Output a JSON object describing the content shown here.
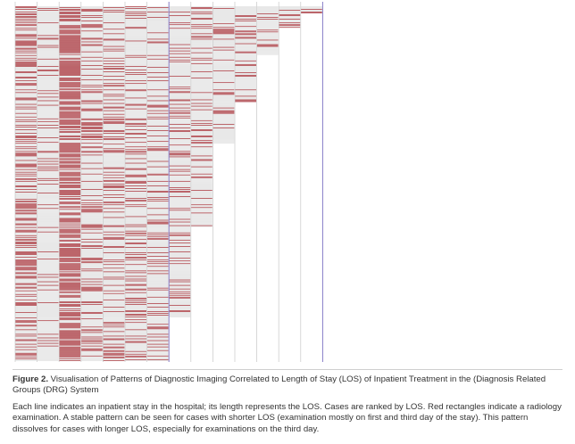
{
  "figure": {
    "label": "Figure 2.",
    "title": "Visualisation of Patterns of Diagnostic Imaging Correlated to Length of Stay (LOS) of Inpatient Treatment in the (Diagnosis Related Groups (DRG) System",
    "description": "Each line indicates an inpatient stay in the hospital; its length represents the LOS. Cases are ranked by LOS. Red rectangles indicate a radiology examination. A stable pattern can be seen for cases with shorter LOS (examination mostly on first and third day of the stay). This pattern dissolves for cases with longer LOS, especially for examinations on the third day."
  },
  "chart_data": {
    "type": "heatmap",
    "title": "",
    "xlabel": "",
    "ylabel": "",
    "grid": true,
    "colors": {
      "exam": "#a8383f",
      "no_exam": "#e2e2e2",
      "grid": "#c8c8c8",
      "week_line": "#8a7fc9"
    },
    "days": 14,
    "week_lines_after_day": [
      7,
      14
    ],
    "exam_probability_by_day": [
      0.42,
      0.12,
      0.72,
      0.3,
      0.28,
      0.25,
      0.22,
      0.2,
      0.22,
      0.22,
      0.25,
      0.22,
      0.22,
      0.25
    ],
    "los_groups": [
      {
        "los": 7,
        "cases": 48
      },
      {
        "los": 8,
        "cases": 100
      },
      {
        "los": 9,
        "cases": 92
      },
      {
        "los": 10,
        "cases": 46
      },
      {
        "los": 11,
        "cases": 52
      },
      {
        "los": 12,
        "cases": 30
      },
      {
        "los": 13,
        "cases": 16
      },
      {
        "los": 14,
        "cases": 8
      }
    ]
  }
}
